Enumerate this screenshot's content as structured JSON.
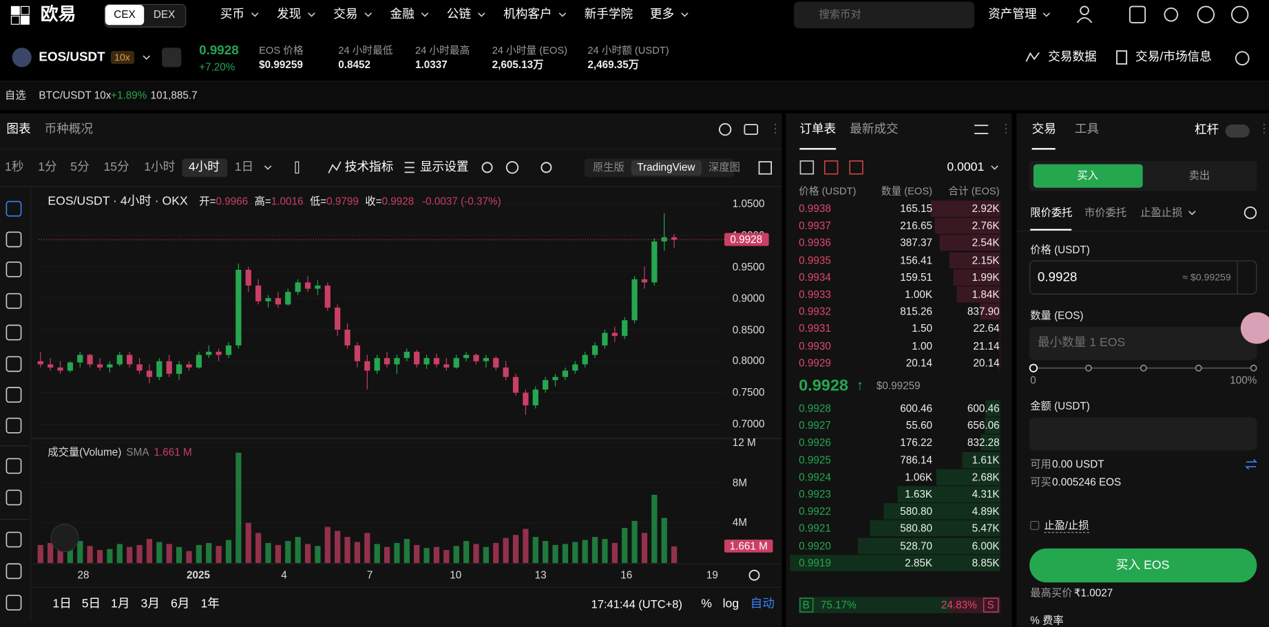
{
  "nav": {
    "logo": "欧易",
    "modes": [
      "CEX",
      "DEX"
    ],
    "menu": [
      "买币",
      "发现",
      "交易",
      "金融",
      "公链",
      "机构客户",
      "新手学院",
      "更多"
    ],
    "search": "搜索币对",
    "assets": "资产管理"
  },
  "ticker": {
    "pair": "EOS/USDT",
    "leverage": "10x",
    "last": "0.9928",
    "change": "+7.20%",
    "stats": [
      {
        "label": "EOS 价格",
        "value": "$0.99259"
      },
      {
        "label": "24 小时最低",
        "value": "0.8452"
      },
      {
        "label": "24 小时最高",
        "value": "1.0337"
      },
      {
        "label": "24 小时量 (EOS)",
        "value": "2,605.13万"
      },
      {
        "label": "24 小时额 (USDT)",
        "value": "2,469.35万"
      }
    ],
    "actions": [
      "交易数据",
      "交易/市场信息"
    ]
  },
  "watchlist": {
    "label": "自选",
    "pair": "BTC/USDT 10x",
    "change": "+1.89%",
    "price": "101,885.7"
  },
  "chart_panel": {
    "tabs": [
      "图表",
      "币种概况"
    ],
    "intervals": [
      "1秒",
      "1分",
      "5分",
      "15分",
      "1小时",
      "4小时",
      "1日"
    ],
    "tools": [
      "技术指标",
      "显示设置"
    ],
    "views": [
      "原生版",
      "TradingView",
      "深度图"
    ],
    "ranges": [
      "1日",
      "5日",
      "1月",
      "3月",
      "6月",
      "1年"
    ],
    "clock": "17:41:44 (UTC+8)",
    "scale_options": [
      "%",
      "log",
      "自动"
    ]
  },
  "chart_data": {
    "type": "candlestick",
    "title": "EOS/USDT · 4小时 · OKX",
    "ohlc_labels": [
      "开=",
      "高=",
      "低=",
      "收="
    ],
    "change_label": "-0.0037 (-0.37%)",
    "x_labels": [
      "28",
      "2025",
      "4",
      "7",
      "10",
      "13",
      "16",
      "19"
    ],
    "open": [
      0.8,
      0.795,
      0.79,
      0.785,
      0.798,
      0.81,
      0.795,
      0.79,
      0.795,
      0.81,
      0.795,
      0.785,
      0.775,
      0.8,
      0.78,
      0.795,
      0.79,
      0.81,
      0.815,
      0.81,
      0.825,
      0.945,
      0.92,
      0.895,
      0.9,
      0.89,
      0.91,
      0.925,
      0.915,
      0.92,
      0.885,
      0.85,
      0.825,
      0.8,
      0.785,
      0.805,
      0.795,
      0.805,
      0.815,
      0.795,
      0.805,
      0.795,
      0.79,
      0.805,
      0.81,
      0.8,
      0.805,
      0.79,
      0.775,
      0.75,
      0.73,
      0.755,
      0.77,
      0.775,
      0.785,
      0.795,
      0.81,
      0.825,
      0.845,
      0.84,
      0.865,
      0.93,
      0.925,
      0.99,
      0.9966
    ],
    "high": [
      0.815,
      0.805,
      0.8,
      0.8,
      0.815,
      0.812,
      0.805,
      0.8,
      0.815,
      0.815,
      0.805,
      0.795,
      0.805,
      0.81,
      0.8,
      0.8,
      0.815,
      0.825,
      0.82,
      0.83,
      0.955,
      0.95,
      0.93,
      0.905,
      0.91,
      0.915,
      0.93,
      0.935,
      0.928,
      0.925,
      0.89,
      0.86,
      0.83,
      0.81,
      0.81,
      0.815,
      0.81,
      0.82,
      0.818,
      0.81,
      0.812,
      0.805,
      0.81,
      0.815,
      0.812,
      0.81,
      0.808,
      0.8,
      0.78,
      0.755,
      0.76,
      0.775,
      0.78,
      0.79,
      0.8,
      0.815,
      0.83,
      0.85,
      0.855,
      0.87,
      0.935,
      0.95,
      0.995,
      1.035,
      1.0016
    ],
    "low": [
      0.79,
      0.785,
      0.78,
      0.782,
      0.79,
      0.79,
      0.785,
      0.782,
      0.792,
      0.79,
      0.78,
      0.765,
      0.77,
      0.775,
      0.77,
      0.785,
      0.788,
      0.805,
      0.8,
      0.805,
      0.82,
      0.91,
      0.89,
      0.885,
      0.885,
      0.888,
      0.905,
      0.91,
      0.905,
      0.88,
      0.84,
      0.82,
      0.79,
      0.755,
      0.78,
      0.79,
      0.78,
      0.8,
      0.79,
      0.788,
      0.79,
      0.785,
      0.788,
      0.8,
      0.795,
      0.79,
      0.785,
      0.77,
      0.745,
      0.715,
      0.725,
      0.75,
      0.76,
      0.77,
      0.78,
      0.79,
      0.805,
      0.82,
      0.83,
      0.835,
      0.86,
      0.915,
      0.92,
      0.975,
      0.9799
    ],
    "close": [
      0.795,
      0.79,
      0.785,
      0.798,
      0.81,
      0.795,
      0.79,
      0.795,
      0.81,
      0.795,
      0.785,
      0.775,
      0.8,
      0.78,
      0.795,
      0.79,
      0.81,
      0.815,
      0.81,
      0.825,
      0.945,
      0.92,
      0.895,
      0.9,
      0.89,
      0.91,
      0.925,
      0.915,
      0.92,
      0.885,
      0.85,
      0.825,
      0.8,
      0.785,
      0.805,
      0.795,
      0.805,
      0.815,
      0.795,
      0.805,
      0.795,
      0.79,
      0.805,
      0.81,
      0.8,
      0.805,
      0.79,
      0.775,
      0.75,
      0.73,
      0.755,
      0.77,
      0.775,
      0.785,
      0.795,
      0.81,
      0.825,
      0.845,
      0.84,
      0.865,
      0.93,
      0.925,
      0.99,
      0.9966,
      0.9928
    ],
    "ylim": [
      0.68,
      1.065
    ],
    "yticks": [
      {
        "value": 0.7,
        "label": "0.7000"
      },
      {
        "value": 0.75,
        "label": "0.7500"
      },
      {
        "value": 0.8,
        "label": "0.8000"
      },
      {
        "value": 0.85,
        "label": "0.8500"
      },
      {
        "value": 0.9,
        "label": "0.9000"
      },
      {
        "value": 0.95,
        "label": "0.9500"
      },
      {
        "value": 1.0,
        "label": "1.0000"
      },
      {
        "value": 1.05,
        "label": "1.0500"
      }
    ],
    "colors": {
      "up": "#25a750",
      "down": "#ca3f64"
    },
    "volume": {
      "title": "成交量(Volume)",
      "indicator": "SMA",
      "value_label": "1.661 M",
      "values": [
        1.8,
        2.0,
        1.5,
        1.6,
        2.2,
        1.7,
        1.3,
        1.4,
        1.9,
        1.6,
        1.8,
        2.4,
        2.1,
        1.9,
        1.6,
        1.2,
        1.8,
        2.0,
        1.7,
        2.3,
        11.0,
        4.0,
        3.0,
        2.0,
        1.8,
        2.2,
        2.6,
        1.9,
        1.7,
        3.6,
        3.2,
        2.6,
        2.1,
        3.0,
        1.9,
        1.6,
        2.0,
        2.4,
        1.8,
        1.5,
        1.6,
        1.3,
        1.7,
        2.2,
        1.9,
        1.6,
        2.0,
        2.5,
        2.8,
        3.4,
        2.6,
        2.2,
        1.8,
        1.9,
        2.1,
        2.3,
        2.6,
        2.4,
        2.0,
        3.5,
        4.2,
        3.0,
        6.8,
        4.5,
        1.661
      ],
      "ylim": [
        0,
        12.5
      ],
      "yticks": [
        {
          "value": 4,
          "label": "4M"
        },
        {
          "value": 8,
          "label": "8M"
        },
        {
          "value": 12,
          "label": "12 M"
        }
      ]
    }
  },
  "order_book": {
    "tabs": [
      "订单表",
      "最新成交"
    ],
    "step": "0.0001",
    "headers": [
      "价格 (USDT)",
      "数量 (EOS)",
      "合计 (EOS)"
    ],
    "asks": {
      "prices": [
        "0.9938",
        "0.9937",
        "0.9936",
        "0.9935",
        "0.9934",
        "0.9933",
        "0.9932",
        "0.9931",
        "0.9930",
        "0.9929"
      ],
      "sizes": [
        "165.15",
        "216.65",
        "387.37",
        "156.41",
        "159.51",
        "1.00K",
        "815.26",
        "1.50",
        "1.00",
        "20.14"
      ],
      "totals": [
        2920,
        2760,
        2540,
        2150,
        1990,
        1840,
        837.9,
        22.64,
        21.14,
        20.14
      ],
      "total_labels": [
        "2.92K",
        "2.76K",
        "2.54K",
        "2.15K",
        "1.99K",
        "1.84K",
        "837.90",
        "22.64",
        "21.14",
        "20.14"
      ]
    },
    "mid": {
      "price": "0.9928",
      "arrow": "↑",
      "usd": "$0.99259"
    },
    "bids": {
      "prices": [
        "0.9928",
        "0.9927",
        "0.9926",
        "0.9925",
        "0.9924",
        "0.9923",
        "0.9922",
        "0.9921",
        "0.9920",
        "0.9919"
      ],
      "sizes": [
        "600.46",
        "55.60",
        "176.22",
        "786.14",
        "1.06K",
        "1.63K",
        "580.80",
        "580.80",
        "528.70",
        "2.85K"
      ],
      "totals": [
        600.46,
        656.06,
        832.28,
        1610,
        2680,
        4310,
        4890,
        5470,
        6000,
        8850
      ],
      "total_labels": [
        "600.46",
        "656.06",
        "832.28",
        "1.61K",
        "2.68K",
        "4.31K",
        "4.89K",
        "5.47K",
        "6.00K",
        "8.85K"
      ]
    },
    "ratio": {
      "buy_tag": "B",
      "buy": 75.17,
      "buy_label": "75.17%",
      "sell": 24.83,
      "sell_label": "24.83%",
      "sell_tag": "S"
    }
  },
  "trade": {
    "tabs": [
      "交易",
      "工具"
    ],
    "leverage": "杠杆",
    "sides": [
      "买入",
      "卖出"
    ],
    "order_types": [
      "限价委托",
      "市价委托",
      "止盈止损"
    ],
    "price_label": "价格 (USDT)",
    "price": "0.9928",
    "price_usd": "≈ $0.99259",
    "qty_label": "数量 (EOS)",
    "qty_placeholder": "最小数量 1 EOS",
    "slider": [
      "0",
      "100%"
    ],
    "amount_label": "金额 (USDT)",
    "available": {
      "label": "可用",
      "value": "0.00 USDT"
    },
    "can_buy": {
      "label": "可买",
      "value": "0.005246 EOS"
    },
    "tpsl": "止盈/止损",
    "submit": "买入 EOS",
    "max_price": {
      "label": "最高买价",
      "value": "₹1.0027"
    },
    "fee": "% 费率"
  }
}
